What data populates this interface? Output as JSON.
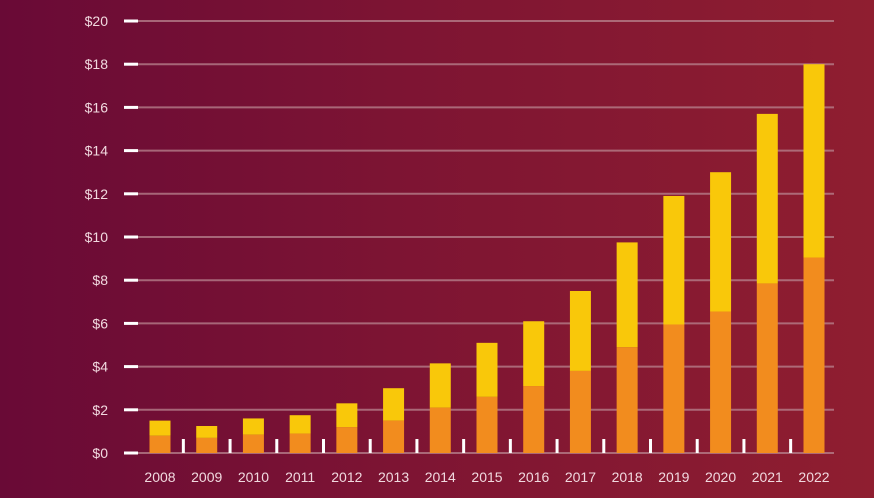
{
  "chart_data": {
    "type": "bar",
    "stacked": true,
    "title": "",
    "xlabel": "",
    "ylabel": "",
    "ylim": [
      0,
      20
    ],
    "grid": true,
    "y_ticks": [
      "$0",
      "$2",
      "$4",
      "$6",
      "$8",
      "$10",
      "$12",
      "$14",
      "$16",
      "$18",
      "$20"
    ],
    "y_tick_values": [
      0,
      2,
      4,
      6,
      8,
      10,
      12,
      14,
      16,
      18,
      20
    ],
    "categories": [
      "2008",
      "2009",
      "2010",
      "2011",
      "2012",
      "2013",
      "2014",
      "2015",
      "2016",
      "2017",
      "2018",
      "2019",
      "2020",
      "2021",
      "2022"
    ],
    "series": [
      {
        "color": "#f28c1e",
        "values": [
          0.8,
          0.7,
          0.85,
          0.9,
          1.2,
          1.5,
          2.1,
          2.6,
          3.1,
          3.8,
          4.9,
          5.95,
          6.55,
          7.85,
          9.05
        ]
      },
      {
        "color": "#f9c80a",
        "values": [
          0.7,
          0.55,
          0.75,
          0.85,
          1.1,
          1.5,
          2.05,
          2.5,
          3.0,
          3.7,
          4.85,
          5.95,
          6.45,
          7.85,
          8.95
        ]
      }
    ]
  }
}
